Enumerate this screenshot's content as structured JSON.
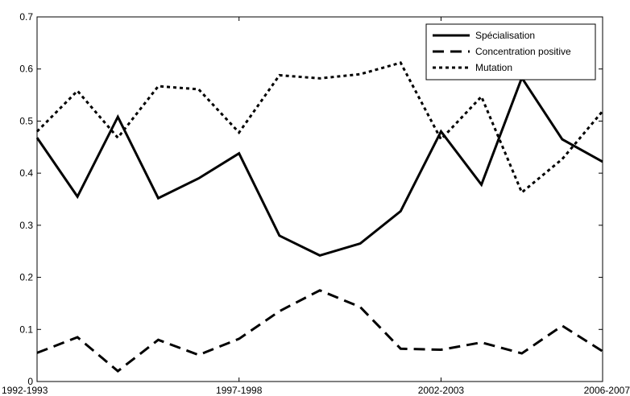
{
  "chart_data": {
    "type": "line",
    "x": [
      1,
      2,
      3,
      4,
      5,
      6,
      7,
      8,
      9,
      10,
      11,
      12,
      13,
      14,
      15
    ],
    "xlim": [
      1,
      15
    ],
    "x_tick_positions": [
      1,
      6,
      11,
      15
    ],
    "x_tick_labels": [
      "1992-1993",
      "1997-1998",
      "2002-2003",
      "2006-2007"
    ],
    "ylim": [
      0,
      0.7
    ],
    "y_ticks": [
      0,
      0.1,
      0.2,
      0.3,
      0.4,
      0.5,
      0.6,
      0.7
    ],
    "y_tick_labels": [
      "0",
      "0.1",
      "0.2",
      "0.3",
      "0.4",
      "0.5",
      "0.6",
      "0.7"
    ],
    "title": "",
    "xlabel": "",
    "ylabel": "",
    "grid": false,
    "legend_position": "top-right",
    "series": [
      {
        "name": "Spécialisation",
        "style": "solid",
        "color": "#000000",
        "values": [
          0.468,
          0.355,
          0.508,
          0.352,
          0.39,
          0.438,
          0.28,
          0.242,
          0.265,
          0.327,
          0.48,
          0.378,
          0.583,
          0.465,
          0.422
        ]
      },
      {
        "name": "Concentration positive",
        "style": "dashed",
        "color": "#000000",
        "values": [
          0.055,
          0.085,
          0.02,
          0.08,
          0.051,
          0.082,
          0.135,
          0.175,
          0.143,
          0.063,
          0.061,
          0.075,
          0.054,
          0.107,
          0.058
        ]
      },
      {
        "name": "Mutation",
        "style": "dotted",
        "color": "#000000",
        "values": [
          0.48,
          0.558,
          0.468,
          0.567,
          0.561,
          0.478,
          0.588,
          0.582,
          0.59,
          0.612,
          0.465,
          0.547,
          0.363,
          0.427,
          0.519
        ]
      }
    ]
  }
}
